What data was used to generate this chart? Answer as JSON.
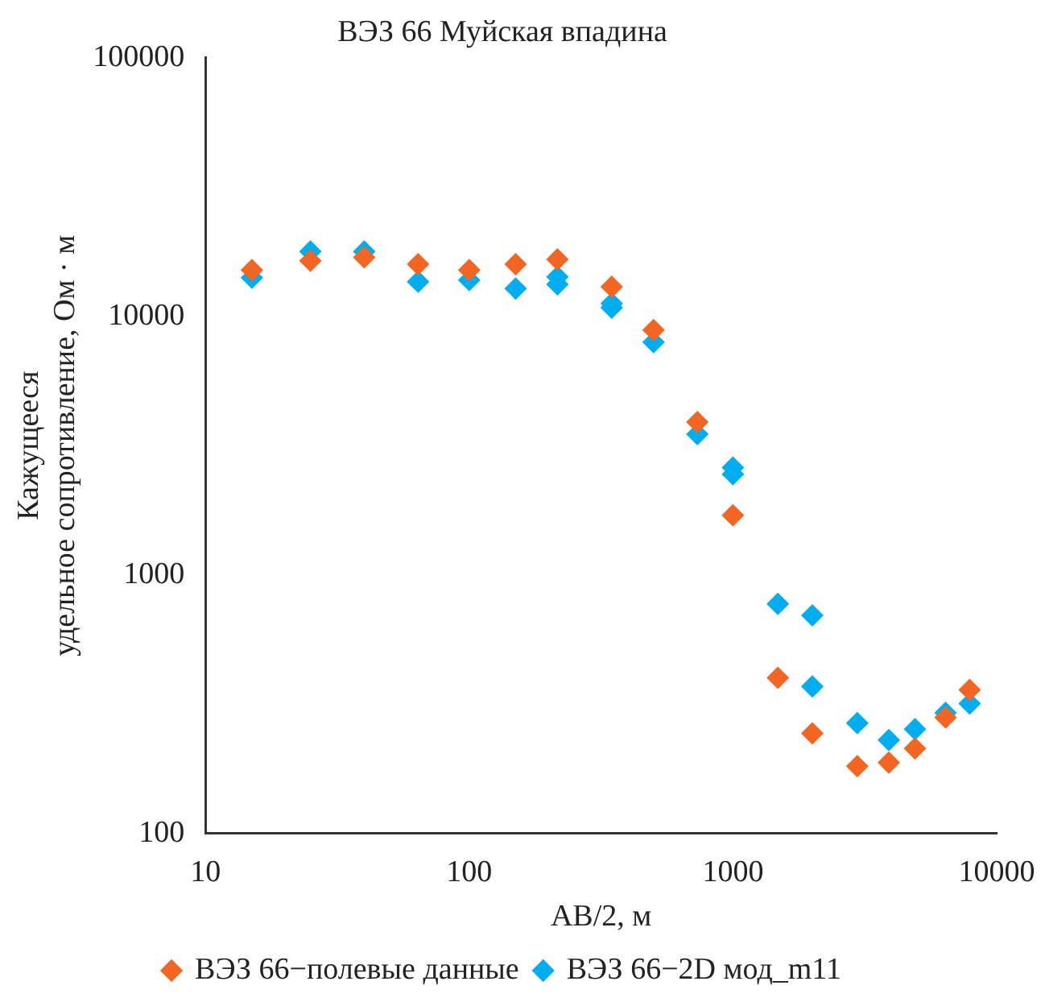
{
  "chart_data": {
    "type": "scatter",
    "title": "ВЭЗ 66 Муйская впадина",
    "xlabel": "AB/2, м",
    "ylabel": "Кажущееся\nудельное сопротивление, Ом · м",
    "log": "xy",
    "xlim": [
      10,
      10000
    ],
    "ylim": [
      100,
      100000
    ],
    "xticks": [
      10,
      100,
      1000,
      10000
    ],
    "yticks": [
      100,
      1000,
      10000,
      100000
    ],
    "grid": false,
    "legend": "bottom",
    "marker": "diamond",
    "series": [
      {
        "name": "ВЭЗ 66−полевые данные",
        "color": "#f26522",
        "x": [
          15,
          25,
          40,
          64,
          100,
          150,
          216,
          347,
          500,
          733,
          1000,
          1480,
          2000,
          2960,
          3900,
          4900,
          6400,
          7900
        ],
        "values": [
          15100,
          16400,
          16900,
          15900,
          15100,
          15900,
          16600,
          13000,
          8840,
          3900,
          1700,
          400,
          244,
          182,
          188,
          213,
          281,
          359
        ]
      },
      {
        "name": "ВЭЗ 66−2D мод_m11",
        "color": "#00aeef",
        "x": [
          15,
          25,
          40,
          64,
          100,
          150,
          216,
          216,
          347,
          347,
          500,
          733,
          1000,
          1000,
          1480,
          2000,
          2000,
          2960,
          3900,
          4900,
          6400,
          7900
        ],
        "values": [
          14100,
          17800,
          17800,
          13600,
          13800,
          12800,
          13300,
          14200,
          10800,
          11200,
          7950,
          3500,
          2600,
          2450,
          773,
          697,
          370,
          267,
          230,
          253,
          293,
          318
        ]
      }
    ]
  }
}
